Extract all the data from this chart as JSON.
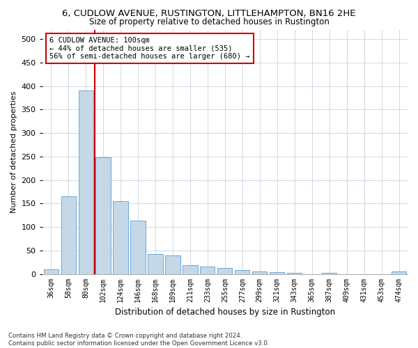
{
  "title1": "6, CUDLOW AVENUE, RUSTINGTON, LITTLEHAMPTON, BN16 2HE",
  "title2": "Size of property relative to detached houses in Rustington",
  "xlabel": "Distribution of detached houses by size in Rustington",
  "ylabel": "Number of detached properties",
  "categories": [
    "36sqm",
    "58sqm",
    "80sqm",
    "102sqm",
    "124sqm",
    "146sqm",
    "168sqm",
    "189sqm",
    "211sqm",
    "233sqm",
    "255sqm",
    "277sqm",
    "299sqm",
    "321sqm",
    "343sqm",
    "365sqm",
    "387sqm",
    "409sqm",
    "431sqm",
    "453sqm",
    "474sqm"
  ],
  "values": [
    10,
    165,
    390,
    248,
    155,
    113,
    42,
    40,
    18,
    15,
    13,
    8,
    6,
    4,
    2,
    0,
    3,
    0,
    0,
    0,
    5
  ],
  "bar_color": "#c5d8e8",
  "bar_edge_color": "#5b9bd5",
  "vline_color": "#cc0000",
  "annotation_text": "6 CUDLOW AVENUE: 100sqm\n← 44% of detached houses are smaller (535)\n56% of semi-detached houses are larger (680) →",
  "annotation_box_color": "#cc0000",
  "annotation_text_color": "#000000",
  "footer": "Contains HM Land Registry data © Crown copyright and database right 2024.\nContains public sector information licensed under the Open Government Licence v3.0.",
  "ylim": [
    0,
    520
  ],
  "yticks": [
    0,
    50,
    100,
    150,
    200,
    250,
    300,
    350,
    400,
    450,
    500
  ],
  "background_color": "#ffffff",
  "grid_color": "#d0d8e4"
}
